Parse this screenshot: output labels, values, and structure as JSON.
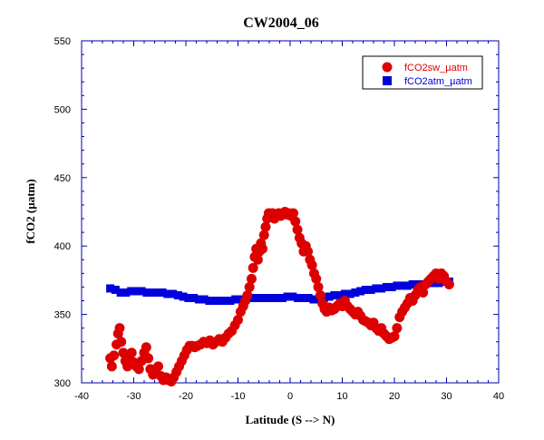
{
  "chart_data": {
    "type": "scatter",
    "title": "CW2004_06",
    "xlabel": "Latitude (S --> N)",
    "ylabel": "fCO2 (µatm)",
    "xlim": [
      -40,
      40
    ],
    "ylim": [
      300,
      550
    ],
    "xticks": [
      -40,
      -30,
      -20,
      -10,
      0,
      10,
      20,
      30,
      40
    ],
    "yticks": [
      300,
      350,
      400,
      450,
      500,
      550
    ],
    "grid": false,
    "legend_position": "top-right",
    "series": [
      {
        "name": "fCO2sw_µatm",
        "marker": "circle",
        "color": "#dd0000",
        "points": [
          [
            -34.5,
            318
          ],
          [
            -34.2,
            312
          ],
          [
            -33.8,
            320
          ],
          [
            -33.3,
            328
          ],
          [
            -33,
            336
          ],
          [
            -32.7,
            340
          ],
          [
            -32.4,
            330
          ],
          [
            -32,
            322
          ],
          [
            -31.6,
            316
          ],
          [
            -31.2,
            312
          ],
          [
            -30.8,
            318
          ],
          [
            -30.4,
            322
          ],
          [
            -30,
            315
          ],
          [
            -29.5,
            312
          ],
          [
            -29,
            310
          ],
          [
            -28.5,
            316
          ],
          [
            -28,
            322
          ],
          [
            -27.6,
            326
          ],
          [
            -27.2,
            318
          ],
          [
            -26.8,
            310
          ],
          [
            -26.3,
            306
          ],
          [
            -25.8,
            310
          ],
          [
            -25.3,
            312
          ],
          [
            -24.8,
            305
          ],
          [
            -24.3,
            302
          ],
          [
            -23.8,
            304
          ],
          [
            -23.3,
            302
          ],
          [
            -22.8,
            301
          ],
          [
            -22.3,
            304
          ],
          [
            -21.8,
            308
          ],
          [
            -21.3,
            312
          ],
          [
            -20.8,
            316
          ],
          [
            -20.3,
            320
          ],
          [
            -19.8,
            324
          ],
          [
            -19.3,
            327
          ],
          [
            -18.8,
            327
          ],
          [
            -18.3,
            326
          ],
          [
            -17.8,
            327
          ],
          [
            -17.2,
            328
          ],
          [
            -16.6,
            330
          ],
          [
            -16,
            329
          ],
          [
            -15.4,
            331
          ],
          [
            -14.8,
            328
          ],
          [
            -14.2,
            330
          ],
          [
            -13.6,
            332
          ],
          [
            -13,
            330
          ],
          [
            -12.4,
            333
          ],
          [
            -11.8,
            336
          ],
          [
            -11.2,
            338
          ],
          [
            -10.6,
            342
          ],
          [
            -10,
            346
          ],
          [
            -9.5,
            352
          ],
          [
            -9,
            356
          ],
          [
            -8.6,
            360
          ],
          [
            -8.2,
            364
          ],
          [
            -7.8,
            370
          ],
          [
            -7.4,
            376
          ],
          [
            -7.1,
            384
          ],
          [
            -6.8,
            392
          ],
          [
            -6.5,
            398
          ],
          [
            -6.2,
            390
          ],
          [
            -5.9,
            396
          ],
          [
            -5.6,
            402
          ],
          [
            -5.3,
            398
          ],
          [
            -5,
            408
          ],
          [
            -4.7,
            414
          ],
          [
            -4.4,
            420
          ],
          [
            -4.1,
            424
          ],
          [
            -3.8,
            422
          ],
          [
            -3.4,
            424
          ],
          [
            -3,
            420
          ],
          [
            -2.6,
            422
          ],
          [
            -2.2,
            424
          ],
          [
            -1.8,
            422
          ],
          [
            -1.4,
            424
          ],
          [
            -1,
            425
          ],
          [
            -0.6,
            423
          ],
          [
            -0.2,
            424
          ],
          [
            0.2,
            422
          ],
          [
            0.6,
            424
          ],
          [
            1,
            418
          ],
          [
            1.4,
            412
          ],
          [
            1.8,
            406
          ],
          [
            2.2,
            402
          ],
          [
            2.6,
            396
          ],
          [
            3,
            400
          ],
          [
            3.4,
            396
          ],
          [
            3.8,
            390
          ],
          [
            4.2,
            386
          ],
          [
            4.6,
            380
          ],
          [
            5,
            376
          ],
          [
            5.4,
            370
          ],
          [
            5.8,
            364
          ],
          [
            6.2,
            358
          ],
          [
            6.6,
            354
          ],
          [
            7,
            352
          ],
          [
            7.5,
            355
          ],
          [
            8,
            353
          ],
          [
            8.5,
            354
          ],
          [
            9,
            356
          ],
          [
            9.5,
            358
          ],
          [
            10,
            356
          ],
          [
            10.5,
            360
          ],
          [
            11,
            356
          ],
          [
            11.5,
            354
          ],
          [
            12,
            352
          ],
          [
            12.5,
            350
          ],
          [
            13,
            352
          ],
          [
            13.5,
            349
          ],
          [
            14,
            346
          ],
          [
            14.5,
            345
          ],
          [
            15,
            344
          ],
          [
            15.5,
            342
          ],
          [
            16,
            344
          ],
          [
            16.5,
            340
          ],
          [
            17,
            338
          ],
          [
            17.5,
            340
          ],
          [
            18,
            336
          ],
          [
            18.5,
            334
          ],
          [
            19,
            332
          ],
          [
            19.5,
            333
          ],
          [
            20,
            334
          ],
          [
            20.5,
            340
          ],
          [
            21,
            348
          ],
          [
            21.5,
            352
          ],
          [
            22,
            355
          ],
          [
            22.5,
            358
          ],
          [
            23,
            362
          ],
          [
            23.5,
            360
          ],
          [
            24,
            364
          ],
          [
            24.5,
            368
          ],
          [
            25,
            370
          ],
          [
            25.5,
            366
          ],
          [
            26,
            372
          ],
          [
            26.5,
            374
          ],
          [
            27,
            376
          ],
          [
            27.5,
            378
          ],
          [
            28,
            380
          ],
          [
            28.5,
            376
          ],
          [
            29,
            380
          ],
          [
            29.5,
            378
          ],
          [
            30,
            374
          ],
          [
            30.5,
            372
          ]
        ]
      },
      {
        "name": "fCO2atm_µatm",
        "marker": "square",
        "color": "#0000dd",
        "points": [
          [
            -34.5,
            369
          ],
          [
            -33.5,
            368
          ],
          [
            -32.5,
            366
          ],
          [
            -31.5,
            366
          ],
          [
            -30.5,
            367
          ],
          [
            -29.5,
            367
          ],
          [
            -28.5,
            367
          ],
          [
            -27.5,
            366
          ],
          [
            -26.5,
            366
          ],
          [
            -25.5,
            366
          ],
          [
            -24.5,
            366
          ],
          [
            -23.5,
            365
          ],
          [
            -22.5,
            365
          ],
          [
            -21.5,
            364
          ],
          [
            -20.5,
            363
          ],
          [
            -19.5,
            362
          ],
          [
            -18.5,
            362
          ],
          [
            -17.5,
            361
          ],
          [
            -16.5,
            361
          ],
          [
            -15.5,
            360
          ],
          [
            -14.5,
            360
          ],
          [
            -13.5,
            360
          ],
          [
            -12.5,
            360
          ],
          [
            -11.5,
            360
          ],
          [
            -10.5,
            361
          ],
          [
            -9.5,
            361
          ],
          [
            -8.5,
            361
          ],
          [
            -7.5,
            362
          ],
          [
            -6.5,
            362
          ],
          [
            -5.5,
            362
          ],
          [
            -4.5,
            362
          ],
          [
            -3.5,
            362
          ],
          [
            -2.5,
            362
          ],
          [
            -1.5,
            362
          ],
          [
            -0.5,
            363
          ],
          [
            0.5,
            363
          ],
          [
            1.5,
            362
          ],
          [
            2.5,
            362
          ],
          [
            3.5,
            362
          ],
          [
            4.5,
            361
          ],
          [
            5.5,
            361
          ],
          [
            6.5,
            362
          ],
          [
            7.5,
            363
          ],
          [
            8.5,
            364
          ],
          [
            9.5,
            364
          ],
          [
            10.5,
            365
          ],
          [
            11.5,
            365
          ],
          [
            12.5,
            366
          ],
          [
            13.5,
            367
          ],
          [
            14.5,
            368
          ],
          [
            15.5,
            368
          ],
          [
            16.5,
            369
          ],
          [
            17.5,
            369
          ],
          [
            18.5,
            370
          ],
          [
            19.5,
            370
          ],
          [
            20.5,
            371
          ],
          [
            21.5,
            371
          ],
          [
            22.5,
            371
          ],
          [
            23.5,
            372
          ],
          [
            24.5,
            372
          ],
          [
            25.5,
            372
          ],
          [
            26.5,
            373
          ],
          [
            27.5,
            373
          ],
          [
            28.5,
            373
          ],
          [
            29.5,
            374
          ],
          [
            30.5,
            374
          ]
        ]
      }
    ]
  }
}
